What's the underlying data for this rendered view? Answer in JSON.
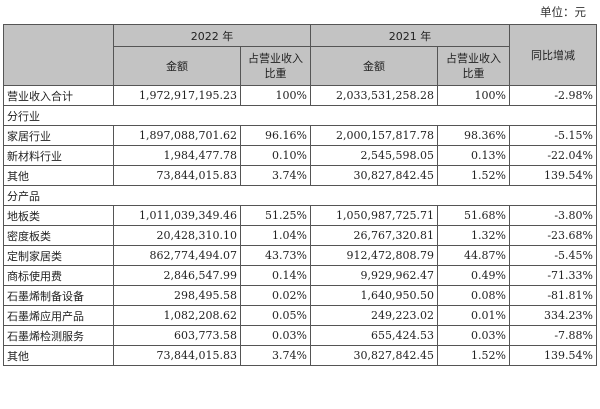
{
  "unit_label": "单位：元",
  "header": {
    "year_2022": "2022 年",
    "year_2021": "2021 年",
    "yoy": "同比增减",
    "amount": "金额",
    "ratio_line1": "占营业收入",
    "ratio_line2": "比重"
  },
  "total_row": {
    "label": "营业收入合计",
    "amt_2022": "1,972,917,195.23",
    "pct_2022": "100%",
    "amt_2021": "2,033,531,258.28",
    "pct_2021": "100%",
    "yoy": "-2.98%"
  },
  "sections": [
    {
      "title": "分行业",
      "rows": [
        {
          "label": "家居行业",
          "amt_2022": "1,897,088,701.62",
          "pct_2022": "96.16%",
          "amt_2021": "2,000,157,817.78",
          "pct_2021": "98.36%",
          "yoy": "-5.15%"
        },
        {
          "label": "新材料行业",
          "amt_2022": "1,984,477.78",
          "pct_2022": "0.10%",
          "amt_2021": "2,545,598.05",
          "pct_2021": "0.13%",
          "yoy": "-22.04%"
        },
        {
          "label": "其他",
          "amt_2022": "73,844,015.83",
          "pct_2022": "3.74%",
          "amt_2021": "30,827,842.45",
          "pct_2021": "1.52%",
          "yoy": "139.54%"
        }
      ]
    },
    {
      "title": "分产品",
      "rows": [
        {
          "label": "地板类",
          "amt_2022": "1,011,039,349.46",
          "pct_2022": "51.25%",
          "amt_2021": "1,050,987,725.71",
          "pct_2021": "51.68%",
          "yoy": "-3.80%"
        },
        {
          "label": "密度板类",
          "amt_2022": "20,428,310.10",
          "pct_2022": "1.04%",
          "amt_2021": "26,767,320.81",
          "pct_2021": "1.32%",
          "yoy": "-23.68%"
        },
        {
          "label": "定制家居类",
          "amt_2022": "862,774,494.07",
          "pct_2022": "43.73%",
          "amt_2021": "912,472,808.79",
          "pct_2021": "44.87%",
          "yoy": "-5.45%"
        },
        {
          "label": "商标使用费",
          "amt_2022": "2,846,547.99",
          "pct_2022": "0.14%",
          "amt_2021": "9,929,962.47",
          "pct_2021": "0.49%",
          "yoy": "-71.33%"
        },
        {
          "label": "石墨烯制备设备",
          "amt_2022": "298,495.58",
          "pct_2022": "0.02%",
          "amt_2021": "1,640,950.50",
          "pct_2021": "0.08%",
          "yoy": "-81.81%"
        },
        {
          "label": "石墨烯应用产品",
          "amt_2022": "1,082,208.62",
          "pct_2022": "0.05%",
          "amt_2021": "249,223.02",
          "pct_2021": "0.01%",
          "yoy": "334.23%"
        },
        {
          "label": "石墨烯检测服务",
          "amt_2022": "603,773.58",
          "pct_2022": "0.03%",
          "amt_2021": "655,424.53",
          "pct_2021": "0.03%",
          "yoy": "-7.88%"
        },
        {
          "label": "其他",
          "amt_2022": "73,844,015.83",
          "pct_2022": "3.74%",
          "amt_2021": "30,827,842.45",
          "pct_2021": "1.52%",
          "yoy": "139.54%"
        }
      ]
    }
  ]
}
